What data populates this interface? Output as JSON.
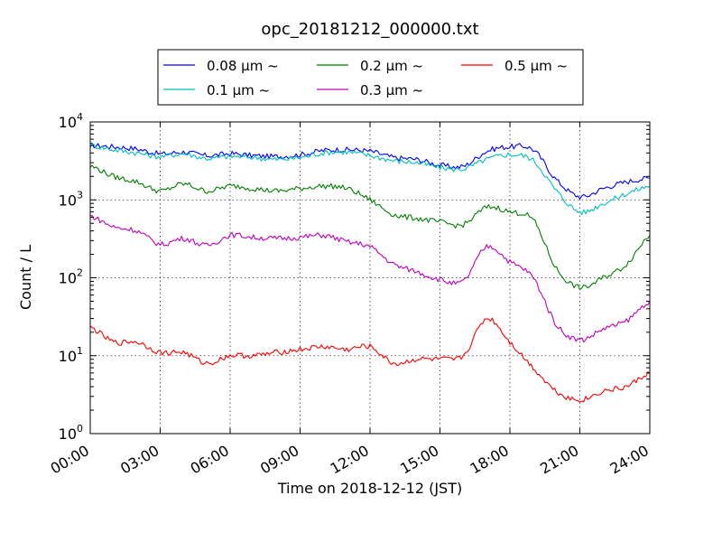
{
  "chart_data": {
    "type": "line",
    "title": "opc_20181212_000000.txt",
    "xlabel": "Time on 2018-12-12 (JST)",
    "ylabel": "Count / L",
    "xlim": [
      0,
      24
    ],
    "ylim": [
      1,
      10000
    ],
    "yscale": "log",
    "grid": true,
    "legend_placement": "top-center",
    "x_ticks": [
      "00:00",
      "03:00",
      "06:00",
      "09:00",
      "12:00",
      "15:00",
      "18:00",
      "21:00",
      "24:00"
    ],
    "y_ticks": [
      {
        "base": "10",
        "exp": "0"
      },
      {
        "base": "10",
        "exp": "1"
      },
      {
        "base": "10",
        "exp": "2"
      },
      {
        "base": "10",
        "exp": "3"
      },
      {
        "base": "10",
        "exp": "4"
      }
    ],
    "legend_order": [
      0,
      2,
      4,
      1,
      3
    ],
    "x_hours": [
      0,
      1,
      2,
      3,
      4,
      5,
      6,
      7,
      8,
      9,
      10,
      11,
      12,
      13,
      14,
      15,
      16,
      17,
      18,
      19,
      20,
      21,
      22,
      23,
      24
    ],
    "series": [
      {
        "name": "0.08 μm ~",
        "color": "#0000ff",
        "values": [
          5000,
          4800,
          4500,
          3900,
          4100,
          3700,
          3900,
          3700,
          3600,
          3800,
          4300,
          4400,
          4200,
          3500,
          3300,
          2800,
          2700,
          4200,
          4800,
          4400,
          1800,
          1100,
          1400,
          1700,
          1900
        ]
      },
      {
        "name": "0.1 μm ~",
        "color": "#00bfbf",
        "values": [
          5000,
          4400,
          4000,
          3600,
          3900,
          3400,
          3600,
          3500,
          3300,
          3500,
          4000,
          4100,
          3700,
          3200,
          3000,
          2600,
          2500,
          3300,
          3800,
          3200,
          1300,
          700,
          900,
          1200,
          1500
        ]
      },
      {
        "name": "0.2 μm ~",
        "color": "#008000",
        "values": [
          2700,
          2000,
          1700,
          1300,
          1600,
          1300,
          1500,
          1400,
          1300,
          1400,
          1500,
          1400,
          1000,
          650,
          580,
          520,
          480,
          800,
          700,
          550,
          130,
          75,
          100,
          150,
          350
        ]
      },
      {
        "name": "0.3 μm ~",
        "color": "#bf00bf",
        "values": [
          620,
          450,
          400,
          270,
          320,
          260,
          350,
          330,
          320,
          330,
          350,
          290,
          250,
          150,
          120,
          95,
          90,
          250,
          160,
          100,
          25,
          16,
          22,
          28,
          50
        ]
      },
      {
        "name": "0.5 μm ~",
        "color": "#ff0000",
        "values": [
          23,
          15,
          15,
          11,
          11,
          8,
          10,
          10,
          11,
          12,
          13,
          12,
          13,
          8,
          9,
          9,
          10,
          30,
          15,
          7,
          3.5,
          2.7,
          3.5,
          4,
          6
        ]
      }
    ]
  }
}
